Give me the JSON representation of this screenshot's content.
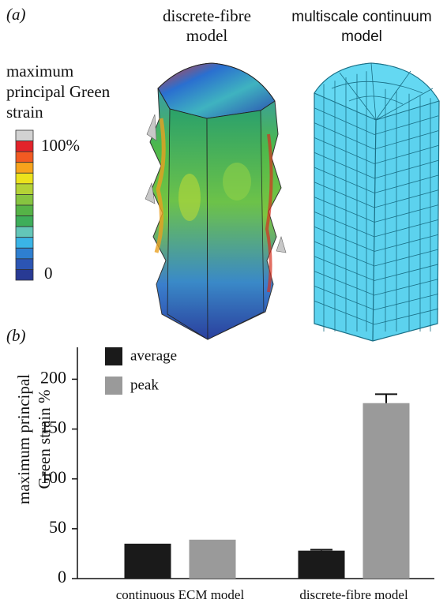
{
  "panel_a": {
    "label": "(a)",
    "model_titles": [
      [
        "discrete-fibre",
        "model"
      ],
      [
        "multiscale continuum",
        "model"
      ]
    ],
    "colorbar": {
      "title": [
        "maximum",
        "principal Green",
        "strain"
      ],
      "top_label": "100%",
      "bottom_label": "0"
    }
  },
  "panel_b": {
    "label": "(b)"
  },
  "chart_data": {
    "type": "bar",
    "ylabel": [
      "maximum principal",
      "Green strain %"
    ],
    "categories": [
      "continuous ECM model",
      "discrete-fibre model"
    ],
    "series": [
      {
        "name": "average",
        "color": "#1a1a1a",
        "values": [
          35,
          28
        ],
        "errors": [
          null,
          1
        ]
      },
      {
        "name": "peak",
        "color": "#9a9a9a",
        "values": [
          39,
          176
        ],
        "errors": [
          null,
          9
        ]
      }
    ],
    "ylim": [
      0,
      232
    ],
    "yticks": [
      0,
      50,
      100,
      150,
      200
    ],
    "legend": "upper left",
    "grid": false
  }
}
